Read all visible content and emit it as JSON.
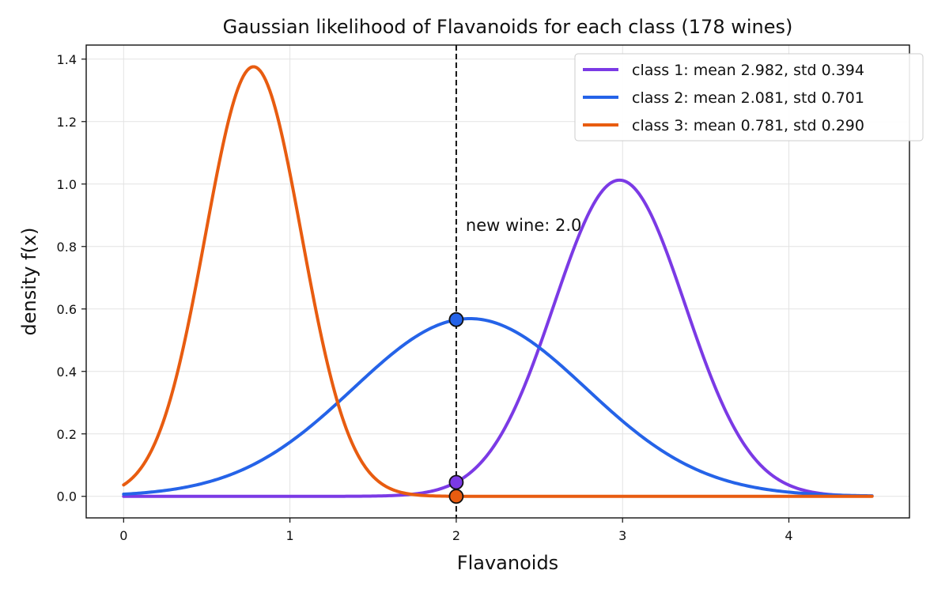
{
  "chart_data": {
    "type": "line",
    "title": "Gaussian likelihood of Flavanoids for each class (178 wines)",
    "xlabel": "Flavanoids",
    "ylabel": "density f(x)",
    "xlim": [
      -0.225,
      4.725
    ],
    "ylim": [
      -0.069,
      1.445
    ],
    "x_range": [
      0,
      4.5
    ],
    "grid": true,
    "legend_position": "top-right",
    "x_ticks": [
      0,
      1,
      2,
      3,
      4
    ],
    "y_ticks": [
      0.0,
      0.2,
      0.4,
      0.6,
      0.8,
      1.0,
      1.2,
      1.4
    ],
    "x_tick_labels": [
      "0",
      "1",
      "2",
      "3",
      "4"
    ],
    "y_tick_labels": [
      "0.0",
      "0.2",
      "0.4",
      "0.6",
      "0.8",
      "1.0",
      "1.2",
      "1.4"
    ],
    "series": [
      {
        "name": "class 1: mean 2.982, std 0.394",
        "mean": 2.982,
        "std": 0.394,
        "color": "#7b3ae5",
        "value_at_new": 0.045
      },
      {
        "name": "class 2: mean 2.081, std 0.701",
        "mean": 2.081,
        "std": 0.701,
        "color": "#2563e8",
        "value_at_new": 0.566
      },
      {
        "name": "class 3: mean 0.781, std 0.290",
        "mean": 0.781,
        "std": 0.29,
        "color": "#e85c10",
        "value_at_new": 0.0
      }
    ],
    "vline": {
      "x": 2.0,
      "label": "new wine: 2.0",
      "label_y": 0.87
    }
  }
}
